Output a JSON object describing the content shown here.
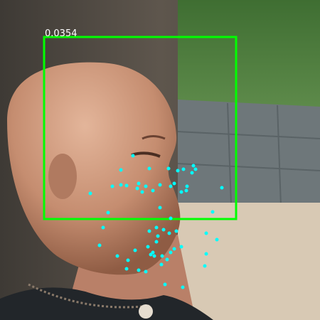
{
  "detection": {
    "score_label": "0.0354"
  }
}
